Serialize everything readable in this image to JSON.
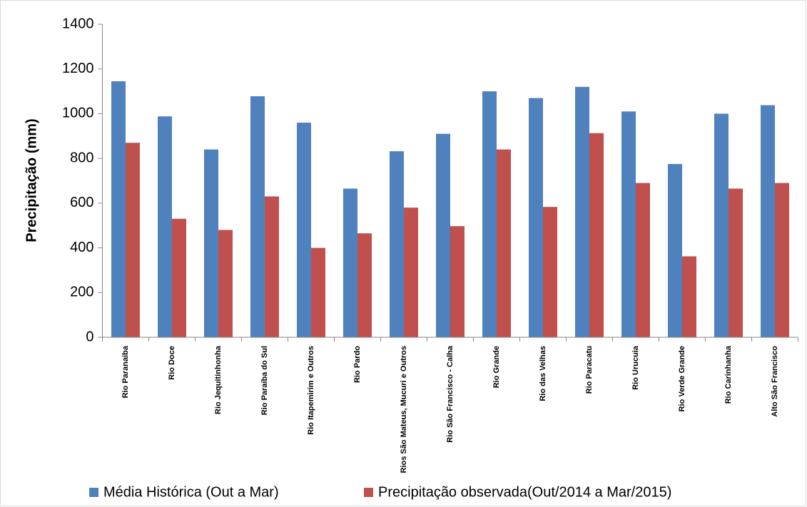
{
  "chart_data": {
    "type": "bar",
    "y_label": "Precipitação (mm)",
    "categories": [
      "Rio Paranaiba",
      "Rio Doce",
      "Rio Jequitinhonha",
      "Rio Paraíba do Sul",
      "Rio Itapemirim e Outros",
      "Rio Pardo",
      "Rios São Mateus, Mucuri e Outros",
      "Rio São Francisco - Calha",
      "Rio Grande",
      "Rio das Velhas",
      "Rio Paracatu",
      "Rio Urucuia",
      "Rio Verde Grande",
      "Rio Carinhanha",
      "Alto São Francisco"
    ],
    "series": [
      {
        "name": "Média Histórica (Out a Mar)",
        "color": "#4f81bd",
        "values": [
          1145,
          988,
          840,
          1078,
          960,
          665,
          832,
          910,
          1100,
          1070,
          1120,
          1010,
          775,
          1000,
          1038
        ]
      },
      {
        "name": "Precipitação observada(Out/2014 a Mar/2015)",
        "color": "#c0504d",
        "values": [
          870,
          530,
          480,
          630,
          400,
          465,
          580,
          497,
          840,
          583,
          913,
          690,
          362,
          665,
          690
        ]
      }
    ],
    "ylim": [
      0,
      1400
    ],
    "yticks": [
      0,
      200,
      400,
      600,
      800,
      1000,
      1200,
      1400
    ],
    "grid": false,
    "legend": "bottom"
  }
}
